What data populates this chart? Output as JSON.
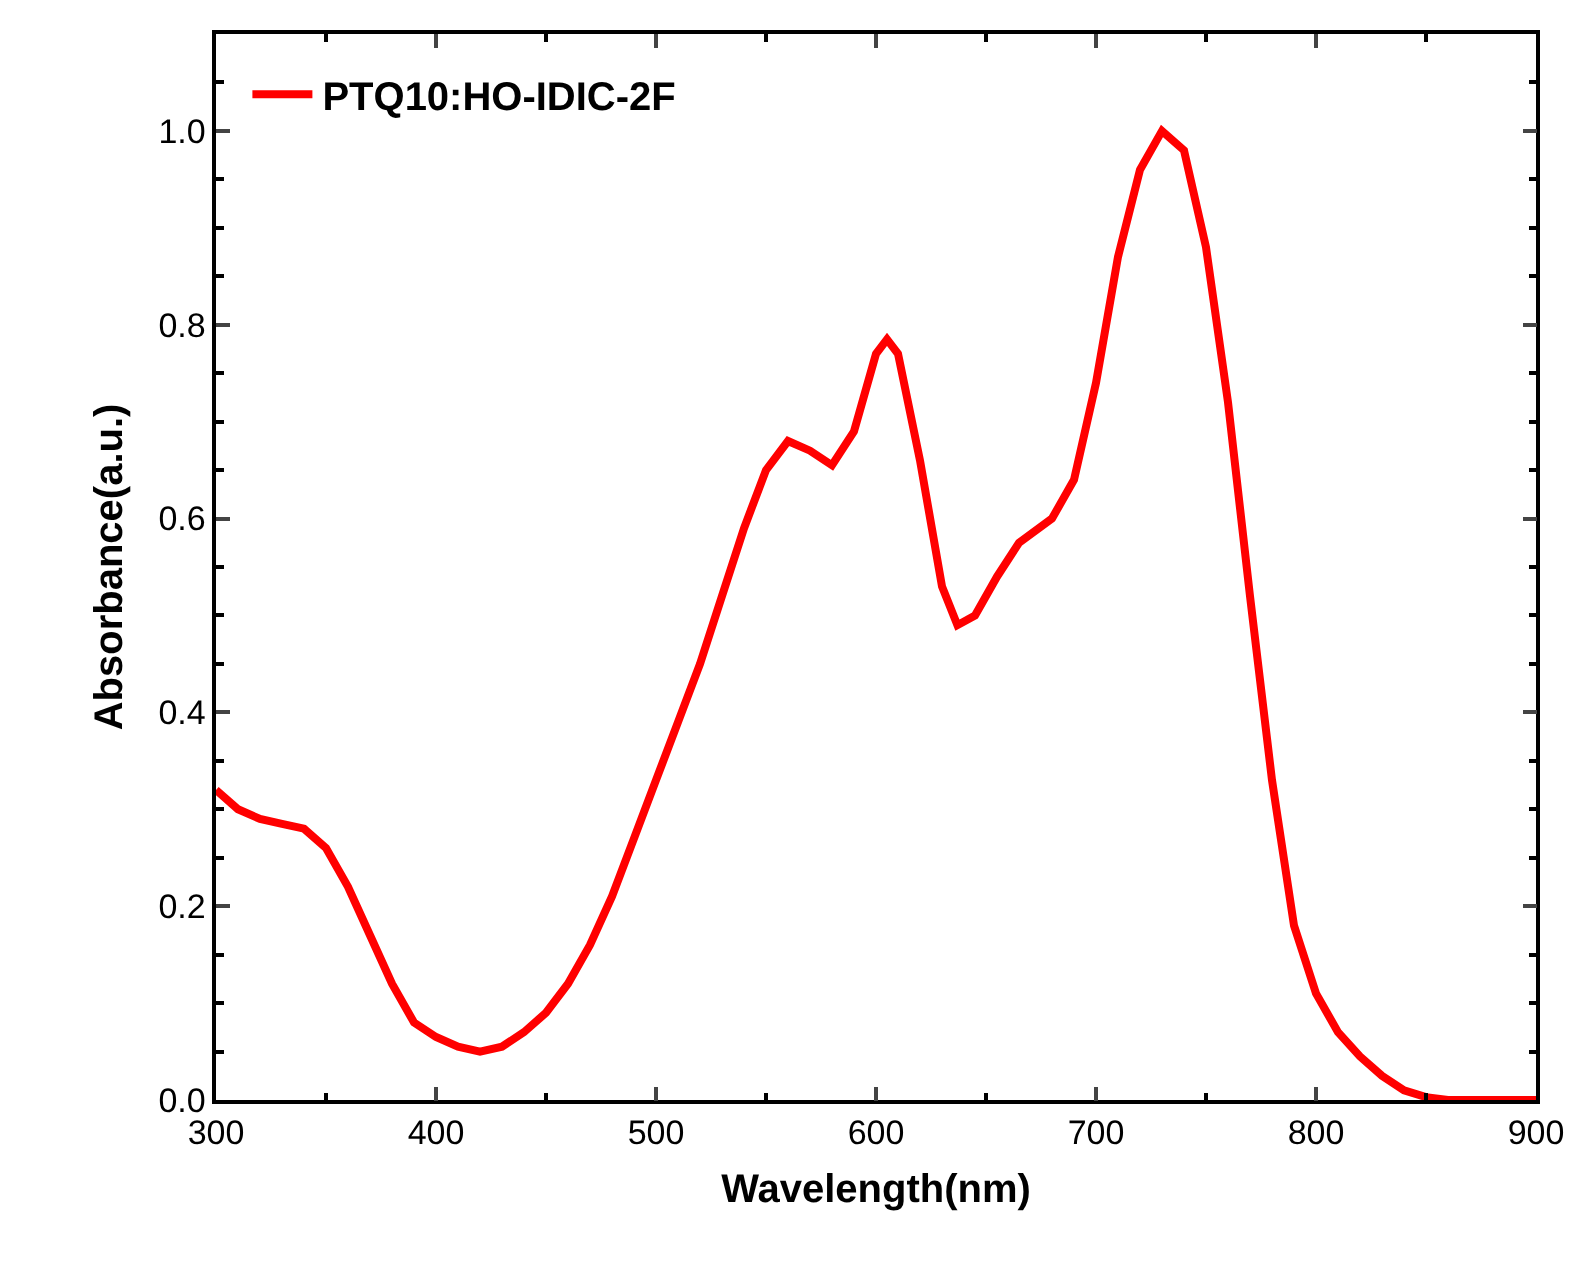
{
  "chart_data": {
    "type": "line",
    "xlabel": "Wavelength(nm)",
    "ylabel": "Absorbance(a.u.)",
    "xlim": [
      300,
      900
    ],
    "xticks": [
      300,
      400,
      500,
      600,
      700,
      800,
      900
    ],
    "ylim": [
      0,
      1.1
    ],
    "yticks": [
      {
        "value": 0,
        "label": "0.0"
      },
      0.2,
      0.4,
      0.6,
      0.8,
      {
        "value": 1,
        "label": "1.0"
      }
    ],
    "grid": false,
    "legend": "top left",
    "marker": "none",
    "line_style": "solid",
    "x": [
      300,
      310,
      320,
      330,
      340,
      350,
      360,
      370,
      380,
      390,
      400,
      410,
      420,
      430,
      440,
      450,
      460,
      470,
      480,
      490,
      500,
      510,
      520,
      530,
      540,
      550,
      560,
      570,
      580,
      590,
      600,
      605,
      610,
      620,
      630,
      637,
      645,
      655,
      665,
      680,
      690,
      700,
      710,
      720,
      730,
      740,
      750,
      760,
      770,
      780,
      790,
      800,
      810,
      820,
      830,
      840,
      850,
      860,
      880,
      900
    ],
    "series": [
      {
        "name": "PTQ10:HO-IDIC-2F",
        "color": "#ff0000",
        "values": [
          0.32,
          0.3,
          0.29,
          0.285,
          0.28,
          0.26,
          0.22,
          0.17,
          0.12,
          0.08,
          0.065,
          0.055,
          0.05,
          0.055,
          0.07,
          0.09,
          0.12,
          0.16,
          0.21,
          0.27,
          0.33,
          0.39,
          0.45,
          0.52,
          0.59,
          0.65,
          0.68,
          0.67,
          0.655,
          0.69,
          0.77,
          0.785,
          0.77,
          0.66,
          0.53,
          0.49,
          0.5,
          0.54,
          0.575,
          0.6,
          0.64,
          0.74,
          0.87,
          0.96,
          1.0,
          0.98,
          0.88,
          0.72,
          0.52,
          0.33,
          0.18,
          0.11,
          0.07,
          0.045,
          0.025,
          0.01,
          0.003,
          0,
          0,
          0
        ]
      }
    ]
  }
}
